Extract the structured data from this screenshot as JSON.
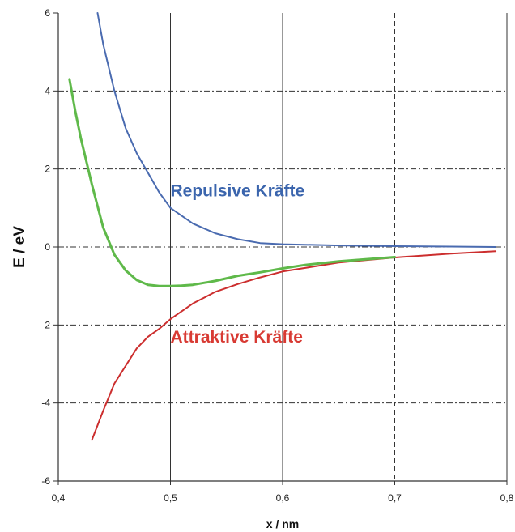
{
  "chart_data": {
    "type": "line",
    "title": "",
    "xlabel": "x / nm",
    "ylabel": "E / eV",
    "xlim": [
      0.4,
      0.8
    ],
    "ylim": [
      -6,
      6
    ],
    "x_ticks": [
      "0,4",
      "0,5",
      "0,6",
      "0,7",
      "0,8"
    ],
    "y_ticks": [
      "6",
      "4",
      "2",
      "0",
      "-2",
      "-4",
      "-6"
    ],
    "grid": "on",
    "series": [
      {
        "color": "#4a6bb0",
        "points": [
          [
            0.435,
            6.0
          ],
          [
            0.44,
            5.2
          ],
          [
            0.45,
            4.0
          ],
          [
            0.46,
            3.05
          ],
          [
            0.47,
            2.4
          ],
          [
            0.48,
            1.9
          ],
          [
            0.49,
            1.4
          ],
          [
            0.5,
            1.0
          ],
          [
            0.52,
            0.6
          ],
          [
            0.54,
            0.35
          ],
          [
            0.56,
            0.2
          ],
          [
            0.58,
            0.1
          ],
          [
            0.6,
            0.07
          ],
          [
            0.65,
            0.04
          ],
          [
            0.7,
            0.02
          ],
          [
            0.75,
            0.01
          ],
          [
            0.79,
            0.0
          ]
        ]
      },
      {
        "color": "#cc2e2e",
        "points": [
          [
            0.43,
            -4.95
          ],
          [
            0.44,
            -4.2
          ],
          [
            0.45,
            -3.5
          ],
          [
            0.46,
            -3.05
          ],
          [
            0.47,
            -2.6
          ],
          [
            0.48,
            -2.3
          ],
          [
            0.49,
            -2.1
          ],
          [
            0.5,
            -1.85
          ],
          [
            0.52,
            -1.45
          ],
          [
            0.54,
            -1.15
          ],
          [
            0.56,
            -0.95
          ],
          [
            0.58,
            -0.78
          ],
          [
            0.6,
            -0.63
          ],
          [
            0.65,
            -0.4
          ],
          [
            0.7,
            -0.27
          ],
          [
            0.75,
            -0.17
          ],
          [
            0.79,
            -0.11
          ]
        ]
      },
      {
        "color": "#5fb94a",
        "points": [
          [
            0.41,
            4.3
          ],
          [
            0.415,
            3.5
          ],
          [
            0.42,
            2.8
          ],
          [
            0.43,
            1.6
          ],
          [
            0.44,
            0.5
          ],
          [
            0.45,
            -0.2
          ],
          [
            0.46,
            -0.6
          ],
          [
            0.47,
            -0.85
          ],
          [
            0.48,
            -0.97
          ],
          [
            0.49,
            -1.0
          ],
          [
            0.5,
            -1.0
          ],
          [
            0.51,
            -0.99
          ],
          [
            0.52,
            -0.97
          ],
          [
            0.54,
            -0.87
          ],
          [
            0.56,
            -0.74
          ],
          [
            0.58,
            -0.65
          ],
          [
            0.6,
            -0.55
          ],
          [
            0.62,
            -0.46
          ],
          [
            0.65,
            -0.37
          ],
          [
            0.7,
            -0.26
          ]
        ]
      }
    ],
    "annotations": [
      {
        "text": "Repulsive Kräfte",
        "x": 0.5,
        "y": 1.3,
        "color": "#3b65ad"
      },
      {
        "text": "Attraktive Kräfte",
        "x": 0.5,
        "y": -2.45,
        "color": "#d83a33"
      }
    ]
  }
}
